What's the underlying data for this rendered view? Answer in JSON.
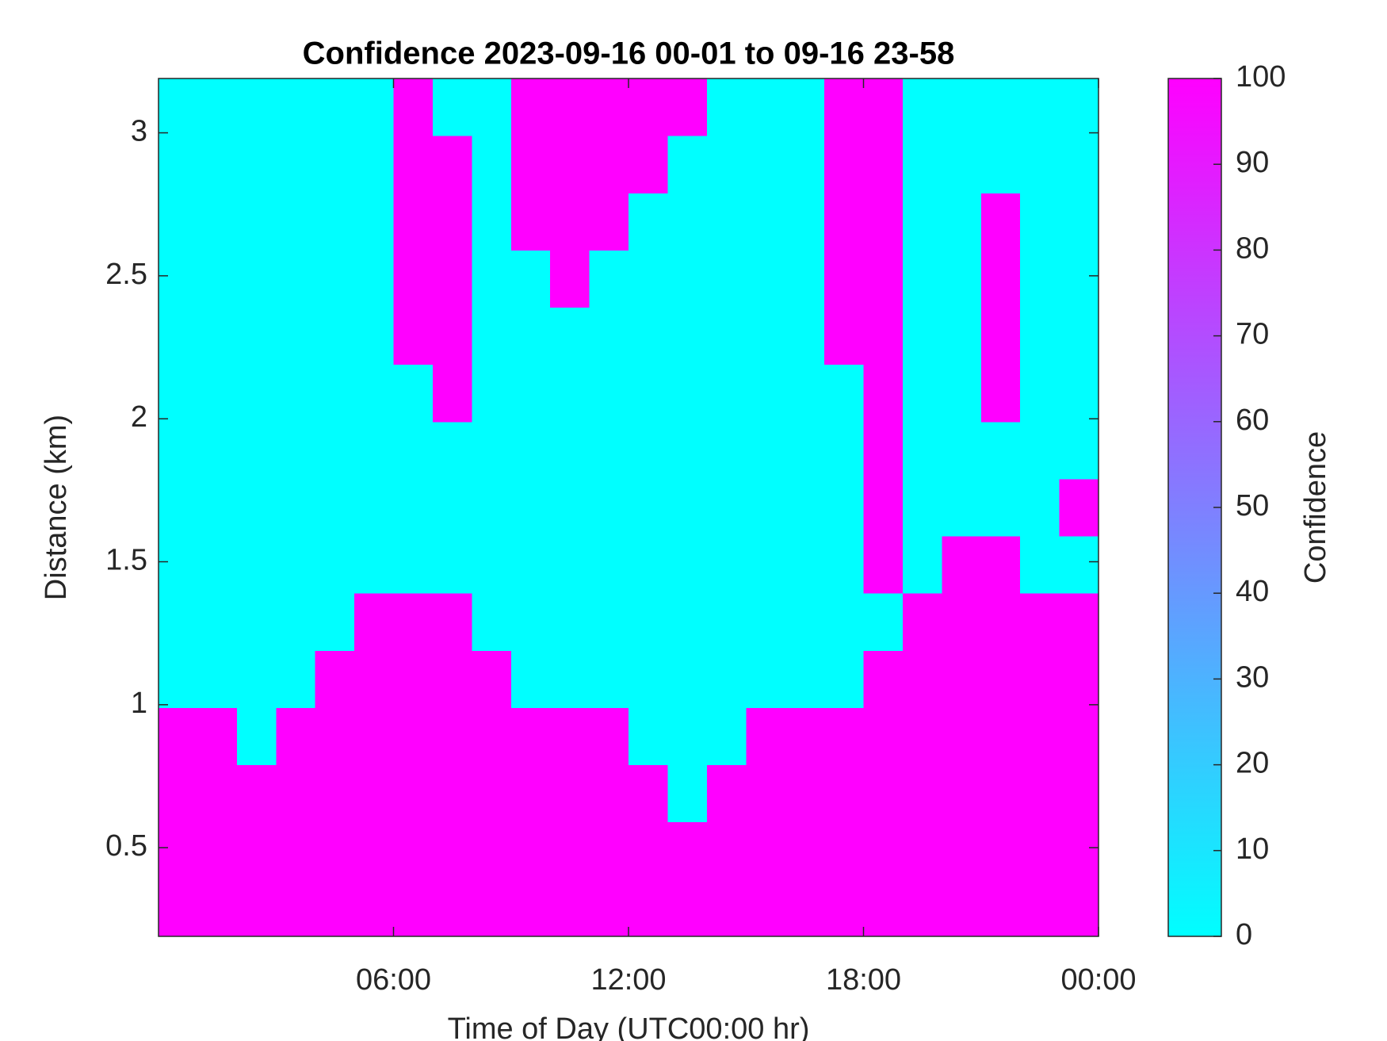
{
  "chart_data": {
    "type": "heatmap",
    "title": "Confidence 2023-09-16 00-01 to 09-16 23-58",
    "x_label": "Time of Day (UTC00:00 hr)",
    "y_label": "Distance (km)",
    "colorbar_label": "Confidence",
    "x": [
      0.5,
      1.5,
      2.5,
      3.5,
      4.5,
      5.5,
      6.5,
      7.5,
      8.5,
      9.5,
      10.5,
      11.5,
      12.5,
      13.5,
      14.5,
      15.5,
      16.5,
      17.5,
      18.5,
      19.5,
      20.5,
      21.5,
      22.5,
      23.5
    ],
    "y": [
      0.29,
      0.49,
      0.69,
      0.89,
      1.09,
      1.29,
      1.49,
      1.69,
      1.89,
      2.09,
      2.29,
      2.49,
      2.69,
      2.89,
      3.09
    ],
    "z": [
      [
        100,
        100,
        100,
        100,
        100,
        100,
        100,
        100,
        100,
        100,
        100,
        100,
        100,
        100,
        100,
        100,
        100,
        100,
        100,
        100,
        100,
        100,
        100,
        100
      ],
      [
        100,
        100,
        100,
        100,
        100,
        100,
        100,
        100,
        100,
        100,
        100,
        100,
        100,
        100,
        100,
        100,
        100,
        100,
        100,
        100,
        100,
        100,
        100,
        100
      ],
      [
        100,
        100,
        100,
        100,
        100,
        100,
        100,
        100,
        100,
        100,
        100,
        100,
        100,
        0,
        100,
        100,
        100,
        100,
        100,
        100,
        100,
        100,
        100,
        100
      ],
      [
        100,
        100,
        0,
        100,
        100,
        100,
        100,
        100,
        100,
        100,
        100,
        100,
        0,
        0,
        0,
        100,
        100,
        100,
        100,
        100,
        100,
        100,
        100,
        100
      ],
      [
        0,
        0,
        0,
        0,
        100,
        100,
        100,
        100,
        100,
        0,
        0,
        0,
        0,
        0,
        0,
        0,
        0,
        0,
        100,
        100,
        100,
        100,
        100,
        100
      ],
      [
        0,
        0,
        0,
        0,
        0,
        100,
        100,
        100,
        0,
        0,
        0,
        0,
        0,
        0,
        0,
        0,
        0,
        0,
        0,
        100,
        100,
        100,
        100,
        100
      ],
      [
        0,
        0,
        0,
        0,
        0,
        0,
        0,
        0,
        0,
        0,
        0,
        0,
        0,
        0,
        0,
        0,
        0,
        0,
        100,
        0,
        100,
        100,
        0,
        0
      ],
      [
        0,
        0,
        0,
        0,
        0,
        0,
        0,
        0,
        0,
        0,
        0,
        0,
        0,
        0,
        0,
        0,
        0,
        0,
        100,
        0,
        0,
        0,
        0,
        100
      ],
      [
        0,
        0,
        0,
        0,
        0,
        0,
        0,
        0,
        0,
        0,
        0,
        0,
        0,
        0,
        0,
        0,
        0,
        0,
        100,
        0,
        0,
        0,
        0,
        0
      ],
      [
        0,
        0,
        0,
        0,
        0,
        0,
        0,
        100,
        0,
        0,
        0,
        0,
        0,
        0,
        0,
        0,
        0,
        0,
        100,
        0,
        0,
        100,
        0,
        0
      ],
      [
        0,
        0,
        0,
        0,
        0,
        0,
        100,
        100,
        0,
        0,
        0,
        0,
        0,
        0,
        0,
        0,
        0,
        100,
        100,
        0,
        0,
        100,
        0,
        0
      ],
      [
        0,
        0,
        0,
        0,
        0,
        0,
        100,
        100,
        0,
        0,
        100,
        0,
        0,
        0,
        0,
        0,
        0,
        100,
        100,
        0,
        0,
        100,
        0,
        0
      ],
      [
        0,
        0,
        0,
        0,
        0,
        0,
        100,
        100,
        0,
        100,
        100,
        100,
        0,
        0,
        0,
        0,
        0,
        100,
        100,
        0,
        0,
        100,
        0,
        0
      ],
      [
        0,
        0,
        0,
        0,
        0,
        0,
        100,
        100,
        0,
        100,
        100,
        100,
        100,
        0,
        0,
        0,
        0,
        100,
        100,
        0,
        0,
        0,
        0,
        0
      ],
      [
        0,
        0,
        0,
        0,
        0,
        0,
        100,
        0,
        0,
        100,
        100,
        100,
        100,
        100,
        0,
        0,
        0,
        100,
        100,
        0,
        0,
        0,
        0,
        0
      ]
    ],
    "xlim": [
      0,
      24
    ],
    "xticks": [
      {
        "value": 6,
        "label": "06:00"
      },
      {
        "value": 12,
        "label": "12:00"
      },
      {
        "value": 18,
        "label": "18:00"
      },
      {
        "value": 24,
        "label": "00:00"
      }
    ],
    "ylim": [
      0.19,
      3.19
    ],
    "yticks": [
      0.5,
      1,
      1.5,
      2,
      2.5,
      3
    ],
    "zlim": [
      0,
      100
    ],
    "zticks": [
      0,
      10,
      20,
      30,
      40,
      50,
      60,
      70,
      80,
      90,
      100
    ],
    "colormap": [
      "#00ffff",
      "#ff00ff"
    ]
  }
}
